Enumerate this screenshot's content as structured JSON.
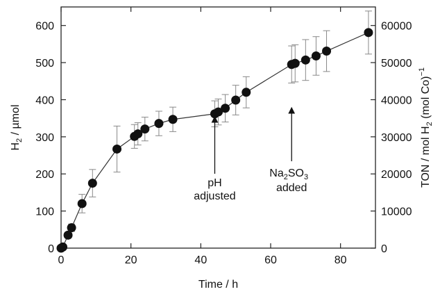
{
  "chart_data": {
    "type": "scatter",
    "xlabel": "Time / h",
    "ylabel": {
      "main": "H",
      "sub": "2",
      "rest": " / µmol"
    },
    "y2label": {
      "pre": "TON / mol H",
      "sub": "2",
      "post": " (mol Co)",
      "sup": "−1"
    },
    "xlim": [
      0,
      90
    ],
    "ylim": [
      0,
      650
    ],
    "y2lim": [
      0,
      65000
    ],
    "xticks": [
      0,
      20,
      40,
      60,
      80
    ],
    "yticks": [
      0,
      100,
      200,
      300,
      400,
      500,
      600
    ],
    "y2ticks": [
      0,
      10000,
      20000,
      30000,
      40000,
      50000,
      60000
    ],
    "grid": false,
    "series": [
      {
        "marker": "filled-circle",
        "connected": true,
        "points": [
          {
            "x": 0,
            "y": 0,
            "err": 0
          },
          {
            "x": 0.5,
            "y": 3,
            "err": 0
          },
          {
            "x": 2,
            "y": 35,
            "err": 8
          },
          {
            "x": 3,
            "y": 55,
            "err": 10
          },
          {
            "x": 6,
            "y": 120,
            "err": 25
          },
          {
            "x": 9,
            "y": 175,
            "err": 37
          },
          {
            "x": 16,
            "y": 267,
            "err": 62
          },
          {
            "x": 21,
            "y": 301,
            "err": 32
          },
          {
            "x": 22,
            "y": 308,
            "err": 30
          },
          {
            "x": 24,
            "y": 321,
            "err": 32
          },
          {
            "x": 28,
            "y": 336,
            "err": 33
          },
          {
            "x": 32,
            "y": 347,
            "err": 33
          },
          {
            "x": 44,
            "y": 362,
            "err": 35
          },
          {
            "x": 45,
            "y": 367,
            "err": 35
          },
          {
            "x": 47,
            "y": 377,
            "err": 37
          },
          {
            "x": 50,
            "y": 399,
            "err": 40
          },
          {
            "x": 53,
            "y": 420,
            "err": 42
          },
          {
            "x": 66,
            "y": 495,
            "err": 50
          },
          {
            "x": 67,
            "y": 498,
            "err": 50
          },
          {
            "x": 70,
            "y": 507,
            "err": 55
          },
          {
            "x": 73,
            "y": 518,
            "err": 52
          },
          {
            "x": 76,
            "y": 531,
            "err": 55
          },
          {
            "x": 88,
            "y": 581,
            "err": 58
          }
        ]
      }
    ],
    "annotations": [
      {
        "lines": [
          "pH",
          "adjusted"
        ],
        "x": 44,
        "y": 362
      },
      {
        "lines": [
          {
            "pre": "Na",
            "sub": "2",
            "mid": "SO",
            "sub2": "3"
          },
          "added"
        ],
        "x": 66,
        "y": 495
      }
    ]
  }
}
